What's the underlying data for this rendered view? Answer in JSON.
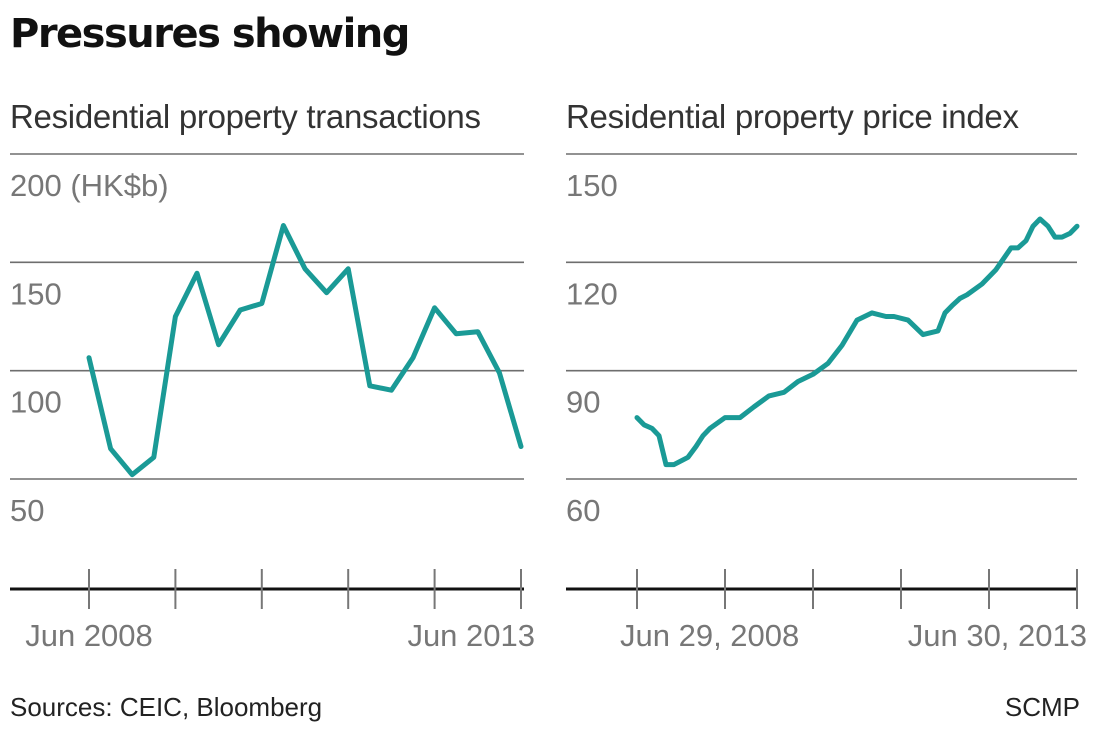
{
  "title": "Pressures showing",
  "footer": {
    "sources": "Sources: CEIC, Bloomberg",
    "credit": "SCMP"
  },
  "chart_data": [
    {
      "type": "line",
      "title": "Residential property transactions",
      "ylabel": "(HK$b)",
      "ylim": [
        50,
        200
      ],
      "yticks": [
        50,
        100,
        150,
        200
      ],
      "ytick_labels": [
        "50",
        "100",
        "150",
        "200 (HK$b)"
      ],
      "grid": true,
      "xtick_labels": [
        "Jun 2008",
        "Jun 2013"
      ],
      "color": "#1a9a96",
      "series": [
        {
          "x": [
            2008.5,
            2008.75,
            2009.0,
            2009.25,
            2009.5,
            2009.75,
            2010.0,
            2010.25,
            2010.5,
            2010.75,
            2011.0,
            2011.25,
            2011.5,
            2011.75,
            2012.0,
            2012.25,
            2012.5,
            2012.75,
            2013.0,
            2013.25,
            2013.5
          ],
          "values": [
            106,
            64,
            52,
            60,
            125,
            145,
            112,
            128,
            131,
            167,
            147,
            136,
            147,
            93,
            91,
            106,
            129,
            117,
            118,
            99,
            65
          ]
        }
      ]
    },
    {
      "type": "line",
      "title": "Residential property price index",
      "ylim": [
        60,
        150
      ],
      "yticks": [
        60,
        90,
        120,
        150
      ],
      "ytick_labels": [
        "60",
        "90",
        "120",
        "150"
      ],
      "grid": true,
      "xtick_labels": [
        "Jun 29, 2008",
        "Jun 30, 2013"
      ],
      "color": "#1a9a96",
      "series": [
        {
          "x": [
            2008.5,
            2008.58,
            2008.67,
            2008.75,
            2008.83,
            2008.92,
            2009.0,
            2009.08,
            2009.17,
            2009.25,
            2009.33,
            2009.5,
            2009.67,
            2009.83,
            2010.0,
            2010.17,
            2010.33,
            2010.5,
            2010.67,
            2010.83,
            2011.0,
            2011.17,
            2011.33,
            2011.42,
            2011.58,
            2011.75,
            2011.92,
            2012.0,
            2012.08,
            2012.17,
            2012.25,
            2012.42,
            2012.58,
            2012.75,
            2012.83,
            2012.92,
            2013.0,
            2013.08,
            2013.17,
            2013.25,
            2013.33,
            2013.42,
            2013.5
          ],
          "values": [
            77,
            75,
            74,
            72,
            64,
            64,
            65,
            66,
            69,
            72,
            74,
            77,
            77,
            80,
            83,
            84,
            87,
            89,
            92,
            97,
            104,
            106,
            105,
            105,
            104,
            100,
            101,
            106,
            108,
            110,
            111,
            114,
            118,
            124,
            124,
            126,
            130,
            132,
            130,
            127,
            127,
            128,
            130
          ]
        }
      ]
    }
  ]
}
